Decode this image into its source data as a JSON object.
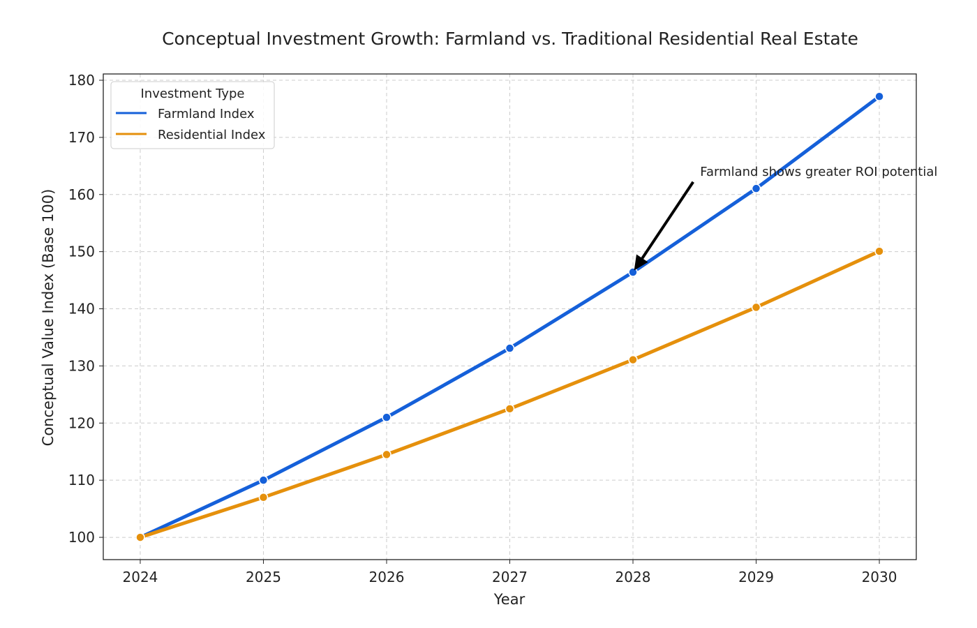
{
  "chart_data": {
    "type": "line",
    "title": "Conceptual Investment Growth: Farmland vs. Traditional Residential Real Estate",
    "xlabel": "Year",
    "ylabel": "Conceptual Value Index (Base 100)",
    "x": [
      2024,
      2025,
      2026,
      2027,
      2028,
      2029,
      2030
    ],
    "xticks": [
      "2024",
      "2025",
      "2026",
      "2027",
      "2028",
      "2029",
      "2030"
    ],
    "yticks": [
      "100",
      "110",
      "120",
      "130",
      "140",
      "150",
      "160",
      "170",
      "180"
    ],
    "xlim": [
      2023.7,
      2030.3
    ],
    "ylim": [
      96.1,
      181.1
    ],
    "grid": true,
    "legend": {
      "title": "Investment Type",
      "placement": "top-left"
    },
    "series": [
      {
        "name": "Farmland Index",
        "color": "#1560D9",
        "values": [
          100,
          110,
          121,
          133.1,
          146.41,
          161.05,
          177.16
        ]
      },
      {
        "name": "Residential Index",
        "color": "#E5900C",
        "values": [
          100,
          107,
          114.49,
          122.5,
          131.08,
          140.26,
          150.07
        ]
      }
    ],
    "annotation": {
      "text": "Farmland shows greater ROI potential",
      "point": [
        2028,
        146.41
      ],
      "text_at": [
        2028.5,
        160
      ],
      "arrow_color": "#000000"
    }
  }
}
